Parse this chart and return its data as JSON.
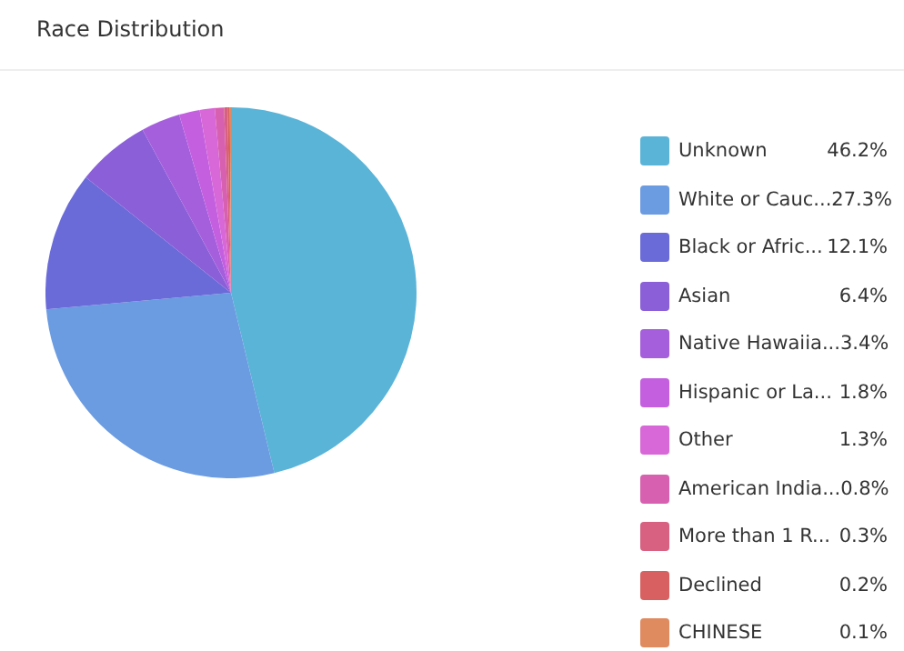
{
  "chart_data": {
    "type": "pie",
    "title": "Race Distribution",
    "categories": [
      "Unknown",
      "White or Cauc...",
      "Black or Afric...",
      "Asian",
      "Native Hawaiia...",
      "Hispanic or La...",
      "Other",
      "American India...",
      "More than 1 R...",
      "Declined",
      "CHINESE"
    ],
    "values": [
      46.2,
      27.3,
      12.1,
      6.4,
      3.4,
      1.8,
      1.3,
      0.8,
      0.3,
      0.2,
      0.1
    ],
    "value_labels": [
      "46.2%",
      "27.3%",
      "12.1%",
      "6.4%",
      "3.4%",
      "1.8%",
      "1.3%",
      "0.8%",
      "0.3%",
      "0.2%",
      "0.1%"
    ],
    "colors": [
      "#5ab4d8",
      "#6b9be0",
      "#6a6ad8",
      "#8a5fd8",
      "#a55fdc",
      "#c460e0",
      "#d868d8",
      "#d860b0",
      "#d86080",
      "#d86060",
      "#e08a60"
    ],
    "legend": "right"
  }
}
